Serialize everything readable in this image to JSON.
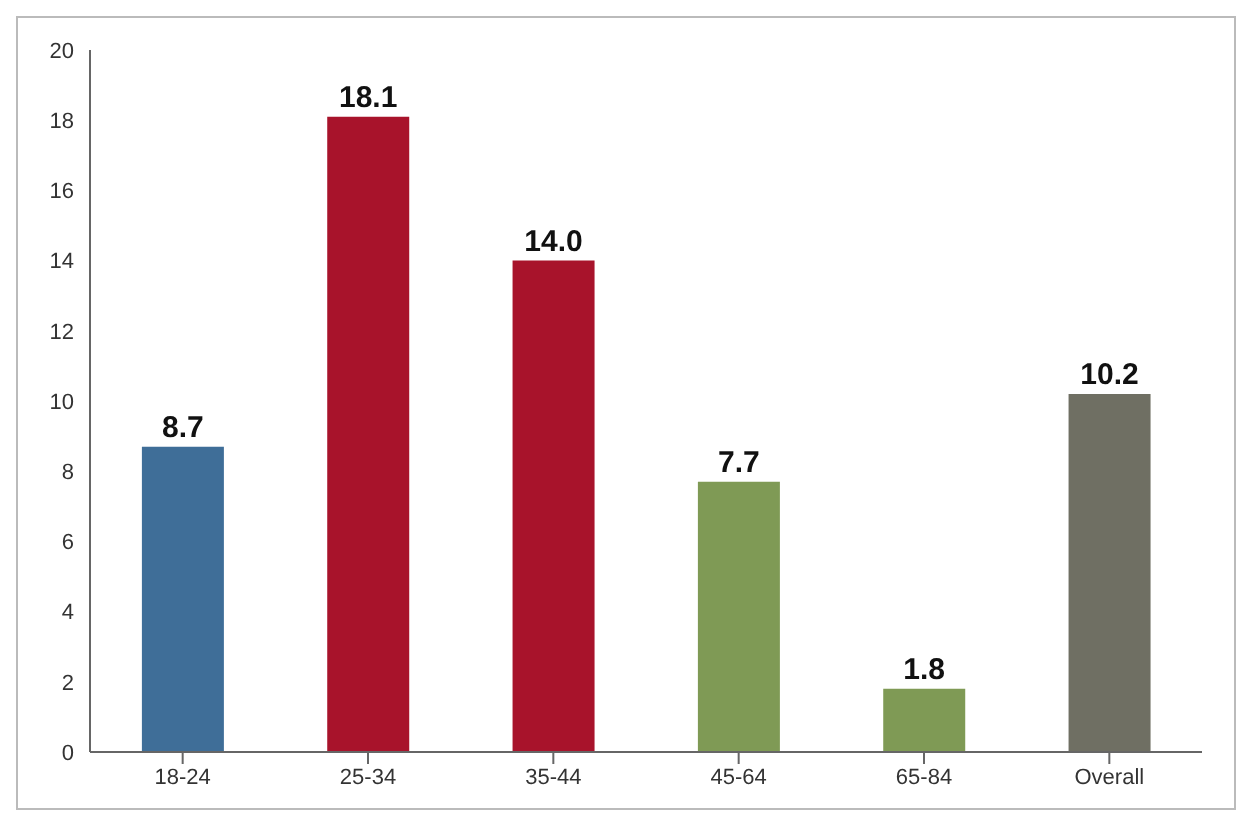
{
  "chart_data": {
    "type": "bar",
    "categories": [
      "18-24",
      "25-34",
      "35-44",
      "45-64",
      "65-84",
      "Overall"
    ],
    "values": [
      8.7,
      18.1,
      14.0,
      7.7,
      1.8,
      10.2
    ],
    "colors": [
      "#3f6e98",
      "#a8132b",
      "#a8132b",
      "#7f9a55",
      "#7f9a55",
      "#6f6f63"
    ],
    "value_labels": [
      "8.7",
      "18.1",
      "14.0",
      "7.7",
      "1.8",
      "10.2"
    ],
    "ylim": [
      0,
      20
    ],
    "yticks": [
      0,
      2,
      4,
      6,
      8,
      10,
      12,
      14,
      16,
      18,
      20
    ],
    "grid": false
  }
}
